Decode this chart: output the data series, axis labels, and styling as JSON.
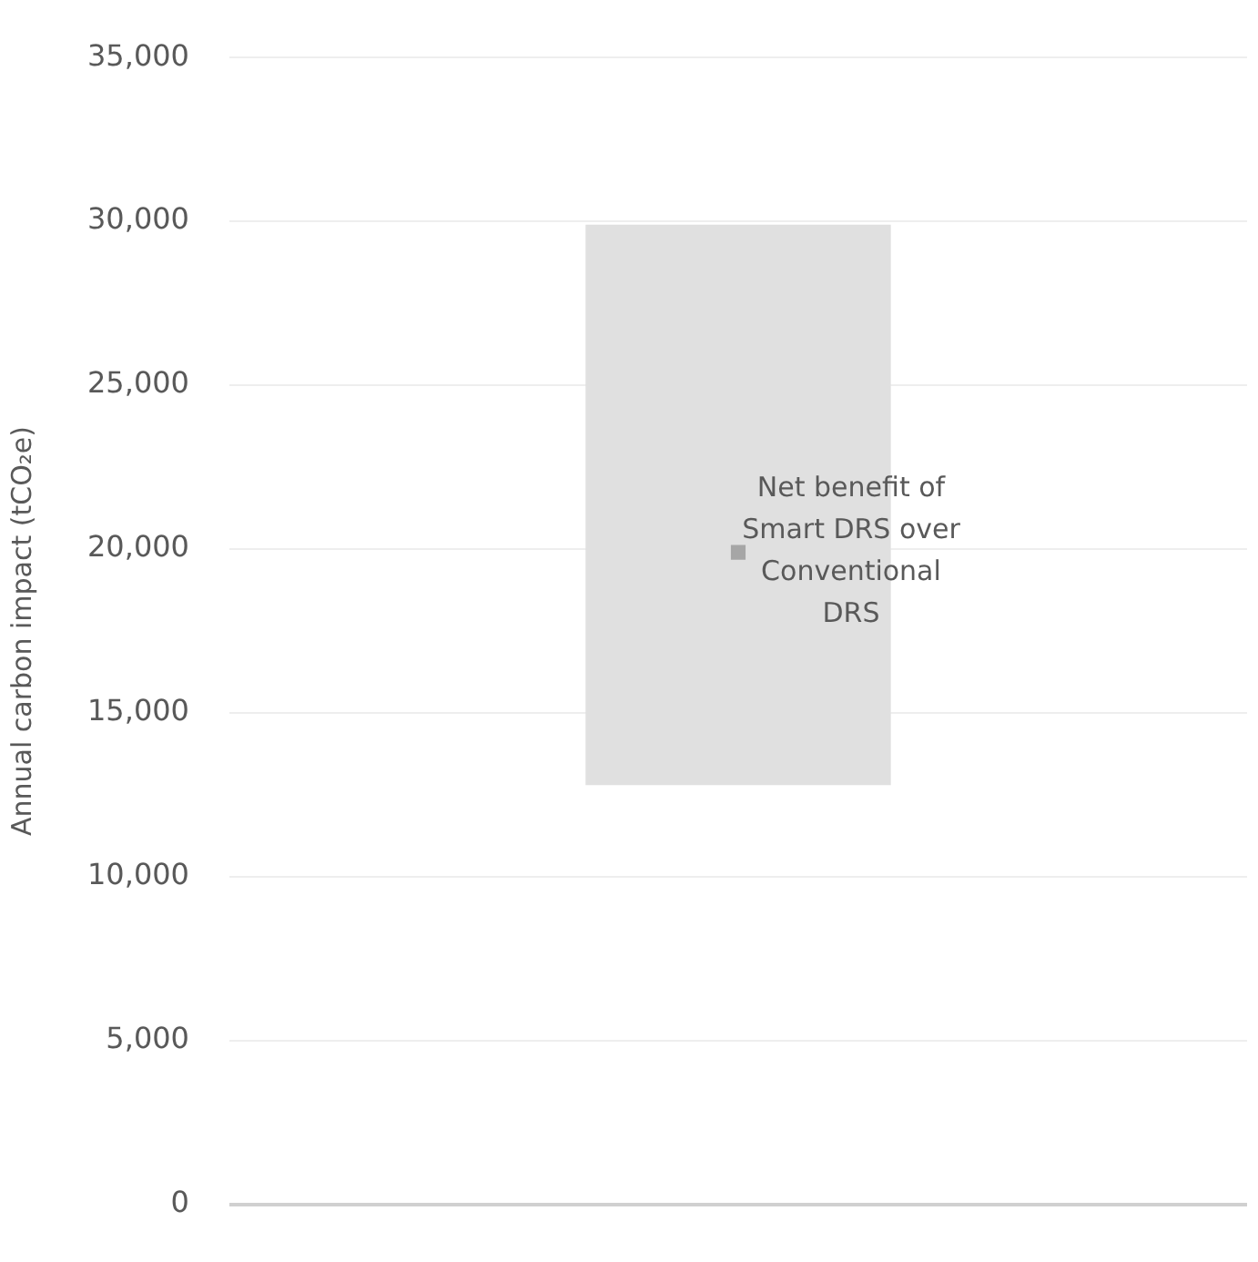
{
  "chart_data": {
    "type": "bar",
    "ylabel": "Annual carbon impact (tCO₂e)",
    "categories": [
      null
    ],
    "series": [
      {
        "values": [
          17100
        ],
        "base": [
          12800
        ],
        "color": "#e0e0e0"
      },
      {
        "type": "scatter",
        "values": [
          19900
        ],
        "color": "#a6a6a6",
        "marker": "square"
      }
    ],
    "ylim": [
      0,
      35000
    ],
    "yticks": [
      0,
      {
        "value": 5000,
        "label": "5,000"
      },
      {
        "value": 10000,
        "label": "10,000"
      },
      {
        "value": 15000,
        "label": "15,000"
      },
      {
        "value": 20000,
        "label": "20,000"
      },
      {
        "value": 25000,
        "label": "25,000"
      },
      {
        "value": 30000,
        "label": "30,000"
      },
      {
        "value": 35000,
        "label": "35,000"
      }
    ],
    "grid": "y",
    "tick_labels": "y",
    "annotations": [
      "Net benefit of Smart DRS over Conventional DRS"
    ]
  }
}
